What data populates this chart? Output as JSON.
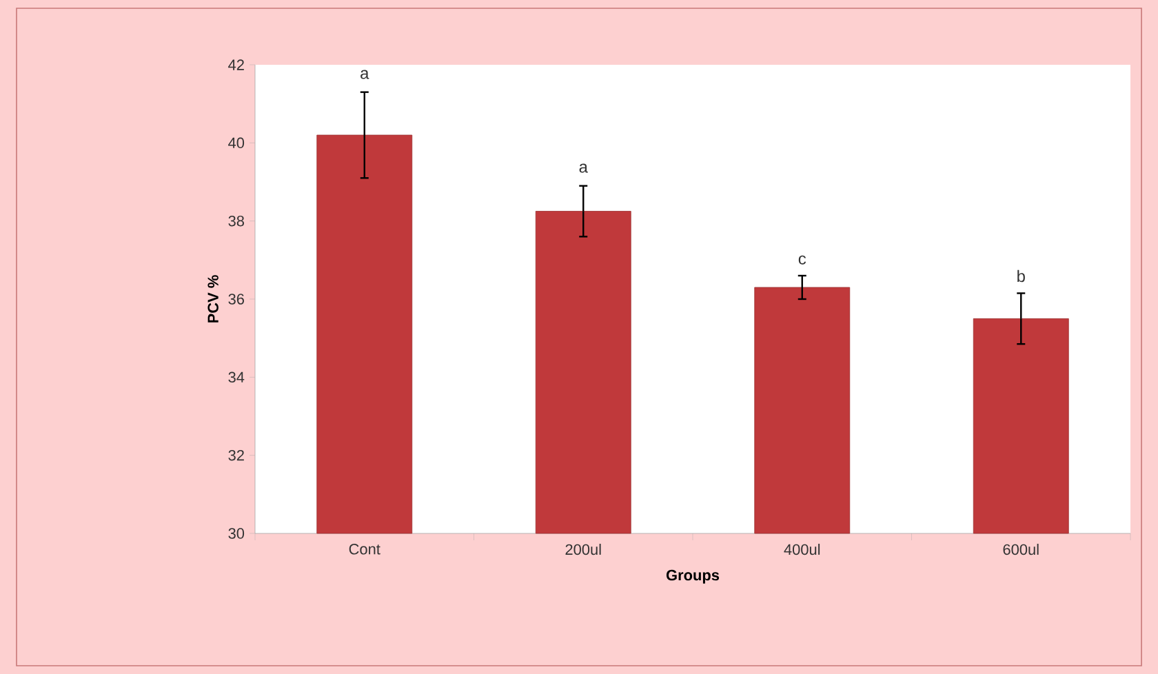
{
  "chart_data": {
    "type": "bar",
    "xlabel": "Groups",
    "ylabel": "PCV %",
    "categories": [
      "Cont",
      "200ul",
      "400ul",
      "600ul"
    ],
    "values": [
      40.2,
      38.25,
      36.3,
      35.5
    ],
    "errors": [
      1.1,
      0.65,
      0.3,
      0.65
    ],
    "color": "#c0393b",
    "ylim": [
      30,
      42
    ],
    "yticks": [
      30,
      32,
      34,
      36,
      38,
      40,
      42
    ],
    "annotations": [
      {
        "text": "a",
        "x": "Cont",
        "y": 41.3
      },
      {
        "text": "a",
        "x": "200ul",
        "y": 38.9
      },
      {
        "text": "c",
        "x": "400ul",
        "y": 36.55
      },
      {
        "text": "b",
        "x": "600ul",
        "y": 36.1
      }
    ]
  }
}
